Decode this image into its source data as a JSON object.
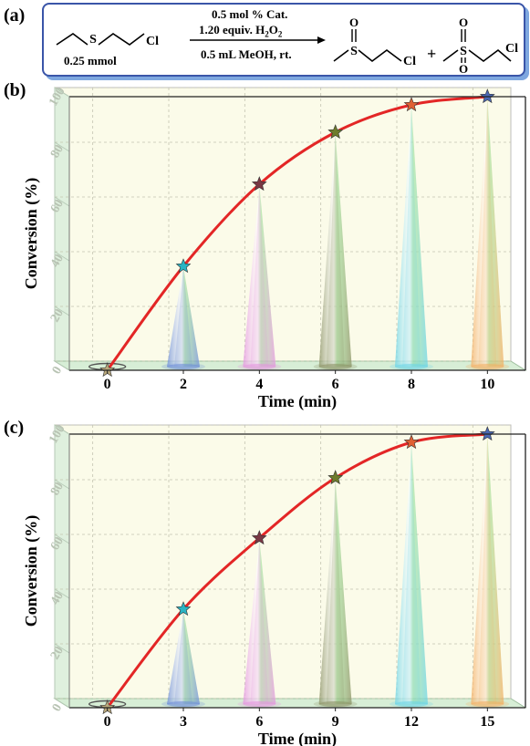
{
  "scheme": {
    "label": "(a)",
    "substrate_amount": "0.25 mmol",
    "conditions": [
      "0.5 mol % Cat.",
      "1.20 equiv. H",
      "2",
      "O",
      "2",
      "0.5 mL MeOH, rt."
    ],
    "atoms": {
      "S": "S",
      "Cl": "Cl",
      "O": "O"
    },
    "plus": "+"
  },
  "chart_data": [
    {
      "type": "line",
      "label": "(b)",
      "xlabel": "Time (min)",
      "ylabel": "Conversion (%)",
      "xlim": [
        -1,
        11
      ],
      "ylim": [
        0,
        100
      ],
      "xticks": [
        "0",
        "2",
        "4",
        "6",
        "8",
        "10"
      ],
      "xtick_values": [
        0,
        2,
        4,
        6,
        8,
        10
      ],
      "yticks": [
        "0",
        "20",
        "40",
        "60",
        "80",
        "100"
      ],
      "ytick_values": [
        0,
        20,
        40,
        60,
        80,
        100
      ],
      "grid": true,
      "x": [
        0,
        2,
        4,
        6,
        8,
        10
      ],
      "values": [
        0,
        38,
        68,
        87,
        97,
        100
      ],
      "curve_color": "#e32626",
      "star_colors": [
        "#b8a77a",
        "#2ab4c4",
        "#7a3844",
        "#6e7c2c",
        "#e06034",
        "#4a68b4"
      ],
      "cone_colors": [
        "#6f8fd8",
        "#e596e0",
        "#8d9467",
        "#6ed5e6",
        "#f4b065"
      ]
    },
    {
      "type": "line",
      "label": "(c)",
      "xlabel": "Time (min)",
      "ylabel": "Conversion (%)",
      "xlim": [
        -1.5,
        16.5
      ],
      "ylim": [
        0,
        100
      ],
      "xticks": [
        "0",
        "3",
        "6",
        "9",
        "12",
        "15"
      ],
      "xtick_values": [
        0,
        3,
        6,
        9,
        12,
        15
      ],
      "yticks": [
        "0",
        "20",
        "40",
        "60",
        "80",
        "100"
      ],
      "ytick_values": [
        0,
        20,
        40,
        60,
        80,
        100
      ],
      "grid": true,
      "x": [
        0,
        3,
        6,
        9,
        12,
        15
      ],
      "values": [
        0,
        36,
        62,
        84,
        97,
        100
      ],
      "curve_color": "#e32626",
      "star_colors": [
        "#b8a77a",
        "#2ab4c4",
        "#7a3844",
        "#6e7c2c",
        "#e06034",
        "#4a68b4"
      ],
      "cone_colors": [
        "#6f8fd8",
        "#e596e0",
        "#8d9467",
        "#6ed5e6",
        "#f4b065"
      ]
    }
  ]
}
